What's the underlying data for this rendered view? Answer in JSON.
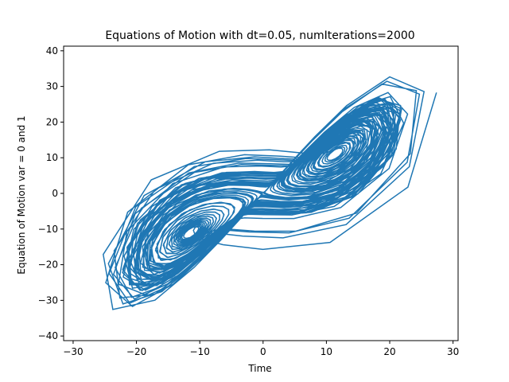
{
  "chart_data": {
    "type": "line",
    "title": "Equations of Motion with dt=0.05, numIterations=2000",
    "xlabel": "Time",
    "ylabel": "Equation of Motion var = 0 and 1",
    "xlim": [
      -31.5,
      30.8
    ],
    "ylim": [
      -41.3,
      41.3
    ],
    "xticks": [
      -30,
      -20,
      -10,
      0,
      10,
      20,
      30
    ],
    "yticks": [
      -40,
      -30,
      -20,
      -10,
      0,
      10,
      20,
      30,
      40
    ],
    "xtick_labels": [
      "−30",
      "−20",
      "−10",
      "0",
      "10",
      "20",
      "30"
    ],
    "ytick_labels": [
      "−40",
      "−30",
      "−20",
      "−10",
      "0",
      "10",
      "20",
      "30",
      "40"
    ],
    "grid": false,
    "legend": "none",
    "series": [
      {
        "color": "#1f77b4",
        "trajectory": "lorenz",
        "n_points": 2000,
        "x": [
          -18,
          -20,
          -23,
          -25,
          -24,
          -21,
          -17,
          -13,
          -9,
          -5,
          0,
          5,
          9,
          13,
          17,
          21,
          24,
          27,
          26,
          23,
          19,
          15,
          11,
          7,
          3,
          -1,
          -6,
          -11,
          -16,
          -20,
          -24,
          -26,
          -24,
          -20,
          -16,
          -13,
          -11,
          -12,
          -15,
          -18
        ],
        "y": [
          -17,
          -24,
          -30,
          -33,
          -35,
          -32,
          -26,
          -18,
          -10,
          -4,
          0,
          5,
          12,
          20,
          27,
          33,
          36,
          31,
          25,
          18,
          12,
          9,
          7,
          6,
          3,
          0,
          -3,
          -6,
          -9,
          -14,
          -22,
          -30,
          -34,
          -28,
          -20,
          -15,
          -10,
          -8,
          -12,
          -18
        ]
      }
    ]
  }
}
